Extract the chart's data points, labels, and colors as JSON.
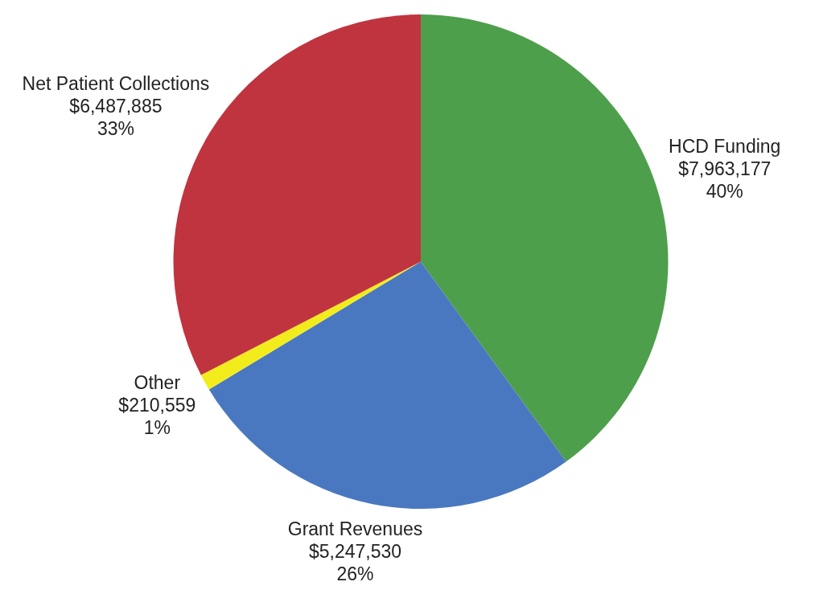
{
  "chart_data": {
    "type": "pie",
    "categories": [
      "HCD Funding",
      "Grant Revenues",
      "Other",
      "Net Patient Collections"
    ],
    "values": [
      7963177,
      5247530,
      210559,
      6487885
    ],
    "colors": [
      "#4e9f4c",
      "#4a78c0",
      "#f2ec1c",
      "#c0343f"
    ],
    "value_labels": [
      "$7,963,177\n40%",
      "$5,247,530\n26%",
      "$210,559\n1%",
      "$6,487,885\n33%"
    ],
    "legend": false
  }
}
